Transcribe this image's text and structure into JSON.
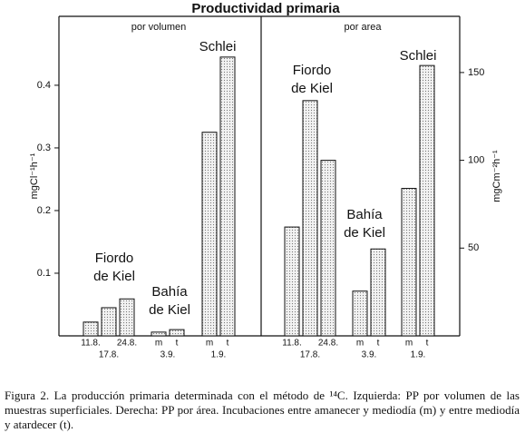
{
  "title": "Productividad primaria",
  "chart_data": [
    {
      "type": "bar",
      "subtitle": "por volumen",
      "y_label": "mgCl⁻¹h⁻¹",
      "ylim": [
        0,
        0.51
      ],
      "yticks": [
        0.1,
        0.2,
        0.3,
        0.4
      ],
      "groups": [
        {
          "label": [
            "Fiordo",
            "de Kiel"
          ],
          "categories": [
            "11.8.",
            "17.8.",
            "24.8."
          ],
          "values": [
            0.022,
            0.045,
            0.059
          ]
        },
        {
          "label": [
            "Bahía",
            "de Kiel"
          ],
          "categories": [
            "m",
            "t"
          ],
          "date": "3.9.",
          "values": [
            0.006,
            0.01
          ]
        },
        {
          "label": [
            "Schlei"
          ],
          "categories": [
            "m",
            "t"
          ],
          "date": "1.9.",
          "values": [
            0.325,
            0.445
          ]
        }
      ]
    },
    {
      "type": "bar",
      "subtitle": "por area",
      "y_label": "mgCm⁻²h⁻¹",
      "ylim": [
        0,
        182
      ],
      "yticks": [
        50,
        100,
        150
      ],
      "groups": [
        {
          "label": [
            "Fiordo",
            "de Kiel"
          ],
          "categories": [
            "11.8.",
            "17.8.",
            "24.8."
          ],
          "values": [
            62,
            134,
            100
          ]
        },
        {
          "label": [
            "Bahía",
            "de Kiel"
          ],
          "categories": [
            "m",
            "t"
          ],
          "date": "3.9.",
          "values": [
            25.5,
            49.5
          ]
        },
        {
          "label": [
            "Schlei"
          ],
          "categories": [
            "m",
            "t"
          ],
          "date": "1.9.",
          "values": [
            84,
            154
          ]
        }
      ]
    }
  ],
  "caption": "Figura 2. La producción primaria determinada con el método de ¹⁴C. Izquierda: PP por volumen de las muestras superficiales. Derecha: PP por área. Incubaciones entre amanecer y mediodía (m) y entre mediodía y atardecer (t)."
}
